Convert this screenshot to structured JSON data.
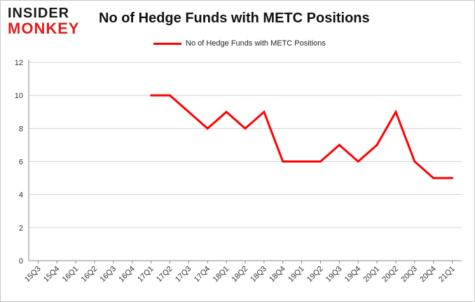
{
  "logo": {
    "line1": "INSIDER",
    "line2": "MONKEY"
  },
  "colors": {
    "series": "#ff0000",
    "grid": "#d0d0d0",
    "axis": "#888888"
  },
  "chart_data": {
    "type": "line",
    "title": "No of Hedge Funds with METC Positions",
    "xlabel": "",
    "ylabel": "",
    "legend_position": "top-center",
    "grid": true,
    "ylim": [
      0,
      12
    ],
    "yticks": [
      0,
      2,
      4,
      6,
      8,
      10,
      12
    ],
    "categories": [
      "15Q3",
      "15Q4",
      "16Q1",
      "16Q2",
      "16Q3",
      "16Q4",
      "17Q1",
      "17Q2",
      "17Q3",
      "17Q4",
      "18Q1",
      "18Q2",
      "18Q3",
      "18Q4",
      "19Q1",
      "19Q2",
      "19Q3",
      "19Q4",
      "20Q1",
      "20Q2",
      "20Q3",
      "20Q4",
      "21Q1"
    ],
    "series": [
      {
        "name": "No of Hedge Funds with METC Positions",
        "values": [
          null,
          null,
          null,
          null,
          null,
          null,
          10,
          10,
          9,
          8,
          9,
          8,
          9,
          6,
          6,
          6,
          7,
          6,
          7,
          9,
          6,
          5,
          5
        ]
      }
    ]
  }
}
